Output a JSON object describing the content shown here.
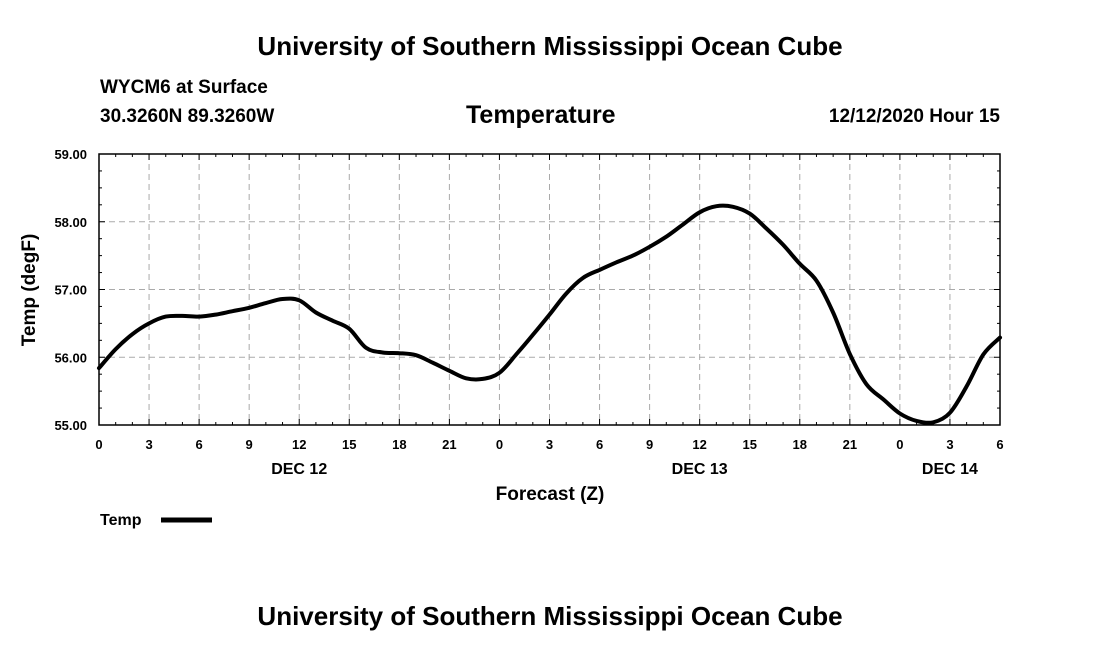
{
  "header": {
    "title": "University of Southern Mississippi Ocean Cube",
    "station": "WYCM6 at Surface",
    "coords": "30.3260N 89.3260W",
    "datetime": "12/12/2020 Hour 15"
  },
  "footer": {
    "title": "University of Southern Mississippi Ocean Cube"
  },
  "chart_data": {
    "type": "line",
    "title": "Temperature",
    "xlabel": "Forecast (Z)",
    "ylabel": "Temp (degF)",
    "ylim": [
      55.0,
      59.0
    ],
    "yticks": [
      "55.00",
      "56.00",
      "57.00",
      "58.00",
      "59.00"
    ],
    "xlim": [
      0,
      54
    ],
    "xticks": [
      {
        "h": 0,
        "label": "0"
      },
      {
        "h": 3,
        "label": "3"
      },
      {
        "h": 6,
        "label": "6"
      },
      {
        "h": 9,
        "label": "9"
      },
      {
        "h": 12,
        "label": "12"
      },
      {
        "h": 15,
        "label": "15"
      },
      {
        "h": 18,
        "label": "18"
      },
      {
        "h": 21,
        "label": "21"
      },
      {
        "h": 24,
        "label": "0"
      },
      {
        "h": 27,
        "label": "3"
      },
      {
        "h": 30,
        "label": "6"
      },
      {
        "h": 33,
        "label": "9"
      },
      {
        "h": 36,
        "label": "12"
      },
      {
        "h": 39,
        "label": "15"
      },
      {
        "h": 42,
        "label": "18"
      },
      {
        "h": 45,
        "label": "21"
      },
      {
        "h": 48,
        "label": "0"
      },
      {
        "h": 51,
        "label": "3"
      },
      {
        "h": 54,
        "label": "6"
      }
    ],
    "date_labels": [
      {
        "h": 12,
        "label": "DEC 12"
      },
      {
        "h": 36,
        "label": "DEC 13"
      },
      {
        "h": 51,
        "label": "DEC 14"
      }
    ],
    "legend": [
      {
        "name": "Temp"
      }
    ],
    "series": [
      {
        "name": "Temp",
        "points": [
          [
            0,
            55.84
          ],
          [
            1,
            56.12
          ],
          [
            2,
            56.34
          ],
          [
            3,
            56.5
          ],
          [
            4,
            56.6
          ],
          [
            5,
            56.61
          ],
          [
            6,
            56.6
          ],
          [
            7,
            56.63
          ],
          [
            8,
            56.68
          ],
          [
            9,
            56.73
          ],
          [
            10,
            56.8
          ],
          [
            11,
            56.86
          ],
          [
            12,
            56.84
          ],
          [
            13,
            56.66
          ],
          [
            14,
            56.54
          ],
          [
            15,
            56.42
          ],
          [
            16,
            56.14
          ],
          [
            17,
            56.07
          ],
          [
            18,
            56.06
          ],
          [
            19,
            56.03
          ],
          [
            20,
            55.92
          ],
          [
            21,
            55.8
          ],
          [
            22,
            55.69
          ],
          [
            23,
            55.68
          ],
          [
            24,
            55.77
          ],
          [
            25,
            56.04
          ],
          [
            26,
            56.33
          ],
          [
            27,
            56.63
          ],
          [
            28,
            56.94
          ],
          [
            29,
            57.17
          ],
          [
            30,
            57.29
          ],
          [
            31,
            57.4
          ],
          [
            32,
            57.5
          ],
          [
            33,
            57.63
          ],
          [
            34,
            57.78
          ],
          [
            35,
            57.96
          ],
          [
            36,
            58.14
          ],
          [
            37,
            58.23
          ],
          [
            38,
            58.22
          ],
          [
            39,
            58.12
          ],
          [
            40,
            57.9
          ],
          [
            41,
            57.66
          ],
          [
            42,
            57.38
          ],
          [
            43,
            57.13
          ],
          [
            44,
            56.66
          ],
          [
            45,
            56.05
          ],
          [
            46,
            55.6
          ],
          [
            47,
            55.38
          ],
          [
            48,
            55.17
          ],
          [
            49,
            55.06
          ],
          [
            50,
            55.04
          ],
          [
            51,
            55.18
          ],
          [
            52,
            55.57
          ],
          [
            53,
            56.04
          ],
          [
            54,
            56.29
          ]
        ]
      }
    ]
  }
}
